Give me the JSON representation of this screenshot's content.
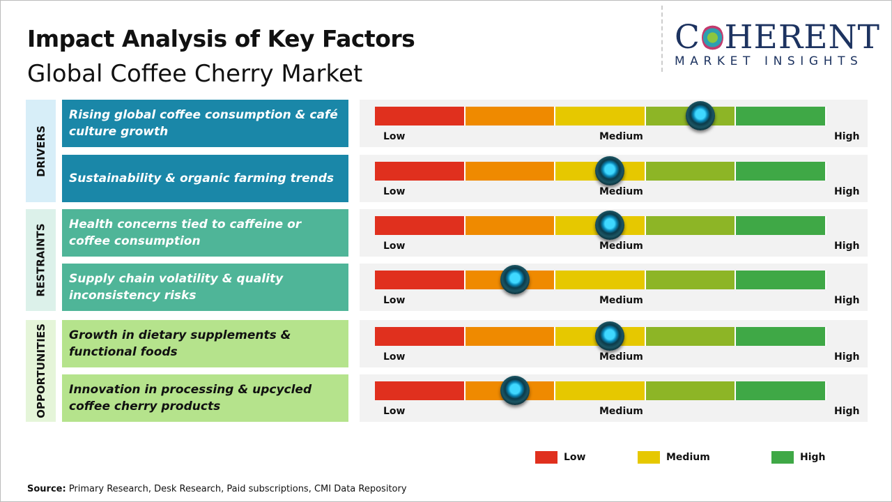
{
  "title": "Impact Analysis of Key Factors",
  "subtitle": "Global Coffee Cherry Market",
  "logo": {
    "main": "COHERENT",
    "sub": "MARKET INSIGHTS"
  },
  "scale_labels": {
    "low": "Low",
    "medium": "Medium",
    "high": "High"
  },
  "segment_colors": [
    "#e0301e",
    "#ef8a00",
    "#e6c800",
    "#8db526",
    "#3fa846"
  ],
  "categories": [
    {
      "name": "DRIVERS",
      "bg": "#d7eef8",
      "box": "#1a87a8",
      "text": "#ffffff"
    },
    {
      "name": "RESTRAINTS",
      "bg": "#dcf1ea",
      "box": "#4fb598",
      "text": "#ffffff"
    },
    {
      "name": "OPPORTUNITIES",
      "bg": "#e5f5d9",
      "box": "#b5e38c",
      "text": "#111111"
    }
  ],
  "factors": [
    {
      "category": 0,
      "label": "Rising global coffee consumption & café culture growth",
      "impact": 0.72
    },
    {
      "category": 0,
      "label": "Sustainability & organic farming trends",
      "impact": 0.52
    },
    {
      "category": 1,
      "label": "Health concerns tied to caffeine or coffee consumption",
      "impact": 0.52
    },
    {
      "category": 1,
      "label": "Supply chain volatility & quality inconsistency risks",
      "impact": 0.31
    },
    {
      "category": 2,
      "label": "Growth in dietary supplements & functional foods",
      "impact": 0.52
    },
    {
      "category": 2,
      "label": "Innovation in processing & upcycled coffee cherry products",
      "impact": 0.31
    }
  ],
  "legend": [
    {
      "label": "Low",
      "color": "#e0301e"
    },
    {
      "label": "Medium",
      "color": "#e6c800"
    },
    {
      "label": "High",
      "color": "#3fa846"
    }
  ],
  "source": {
    "label": "Source:",
    "text": " Primary Research, Desk Research, Paid subscriptions, CMI Data Repository"
  }
}
